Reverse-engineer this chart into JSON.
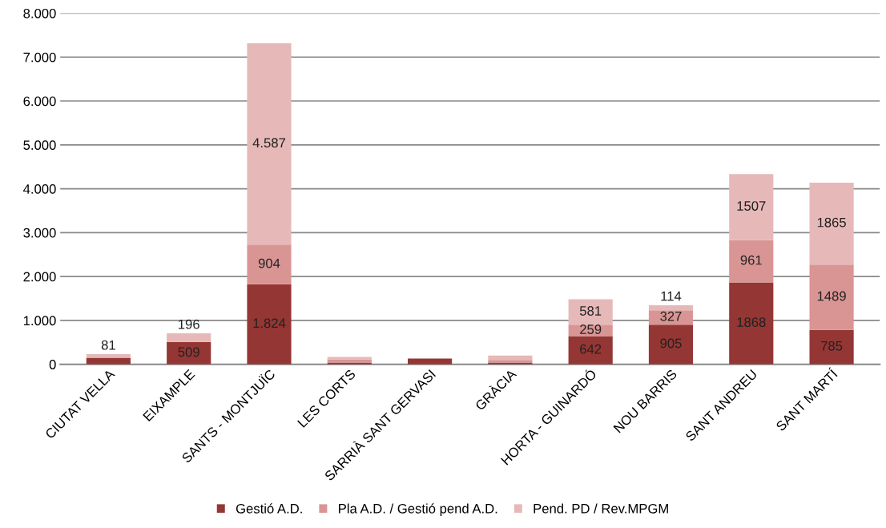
{
  "chart_data": {
    "type": "bar",
    "stacked": true,
    "categories": [
      "CIUTAT VELLA",
      "EIXAMPLE",
      "SANTS - MONTJUÏC",
      "LES CORTS",
      "SARRIÀ SANT GERVASI",
      "GRÀCIA",
      "HORTA - GUINARDÓ",
      "NOU BARRIS",
      "SANT ANDREU",
      "SANT MARTÍ"
    ],
    "series": [
      {
        "name": "Gestió A.D.",
        "color": "#943634",
        "values": [
          150,
          509,
          1824,
          40,
          130,
          40,
          642,
          905,
          1868,
          785
        ],
        "value_labels": [
          null,
          "509",
          "1.824",
          null,
          null,
          null,
          "642",
          "905",
          "1868",
          "785"
        ]
      },
      {
        "name": "Pla A.D. / Gestió pend A.D.",
        "color": "#d99594",
        "values": [
          0,
          0,
          904,
          70,
          0,
          60,
          259,
          327,
          961,
          1489
        ],
        "value_labels": [
          null,
          null,
          "904",
          null,
          null,
          null,
          "259",
          "327",
          "961",
          "1489"
        ]
      },
      {
        "name": "Pend. PD / Rev.MPGM",
        "color": "#e6b9b8",
        "values": [
          81,
          196,
          4587,
          60,
          0,
          100,
          581,
          114,
          1507,
          1865
        ],
        "value_labels": [
          "81",
          "196",
          "4.587",
          null,
          null,
          null,
          "581",
          "114",
          "1507",
          "1865"
        ]
      }
    ],
    "ylim": [
      0,
      8000
    ],
    "yticks": [
      {
        "value": 0,
        "label": "0"
      },
      {
        "value": 1000,
        "label": "1.000"
      },
      {
        "value": 2000,
        "label": "2.000"
      },
      {
        "value": 3000,
        "label": "3.000"
      },
      {
        "value": 4000,
        "label": "4.000"
      },
      {
        "value": 5000,
        "label": "5.000"
      },
      {
        "value": 6000,
        "label": "6.000"
      },
      {
        "value": 7000,
        "label": "7.000"
      },
      {
        "value": 8000,
        "label": "8.000"
      }
    ],
    "grid": "y",
    "legend": "bottom"
  }
}
